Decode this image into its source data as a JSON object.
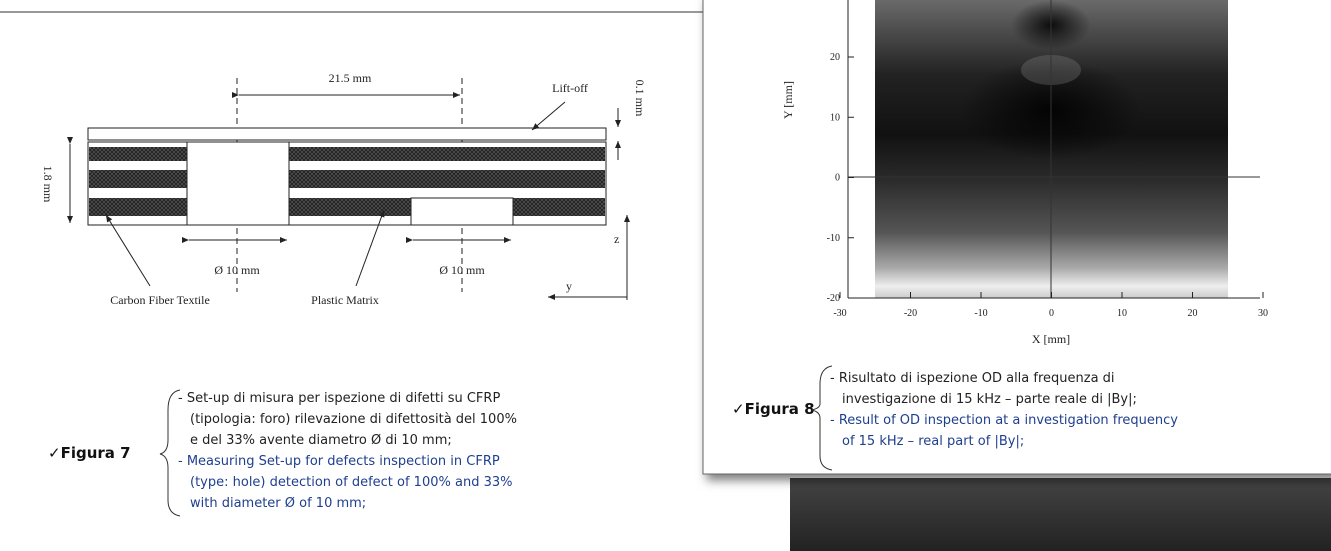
{
  "figure7": {
    "drawing": {
      "distance": "21.5 mm",
      "lift_off": "Lift-off",
      "lift_off_gap": "0.1 mm",
      "thickness": "1.8 mm",
      "hole_1": "Ø 10 mm",
      "hole_2": "Ø 10 mm",
      "carbon_fiber": "Carbon Fiber Textile",
      "plastic_matrix": "Plastic Matrix",
      "axis_z": "z",
      "axis_y": "y"
    },
    "label": "✓Figura 7",
    "caption_it": [
      "- Set-up di misura per ispezione di difetti su CFRP",
      "(tipologia: foro) rilevazione di difettosità del 100%",
      "e del 33% avente diametro Ø di 10 mm;"
    ],
    "caption_en": [
      "- Measuring Set-up for defects inspection in CFRP",
      "(type: hole) detection of defect of 100% and 33%",
      "with diameter Ø of 10 mm;"
    ]
  },
  "figure8": {
    "plot": {
      "y_label": "Y [mm]",
      "x_label": "X [mm]",
      "yticks": [
        "20",
        "10",
        "0",
        "-10",
        "-20"
      ],
      "xticks": [
        "-30",
        "-20",
        "-10",
        "0",
        "10",
        "20",
        "30"
      ]
    },
    "label": "✓Figura 8",
    "caption_it": [
      "- Risultato di ispezione OD alla frequenza di",
      "investigazione di 15 kHz – parte reale di |By|;"
    ],
    "caption_en": [
      "- Result of OD inspection at a investigation frequency",
      "of 15 kHz – real part of |By|;"
    ]
  }
}
